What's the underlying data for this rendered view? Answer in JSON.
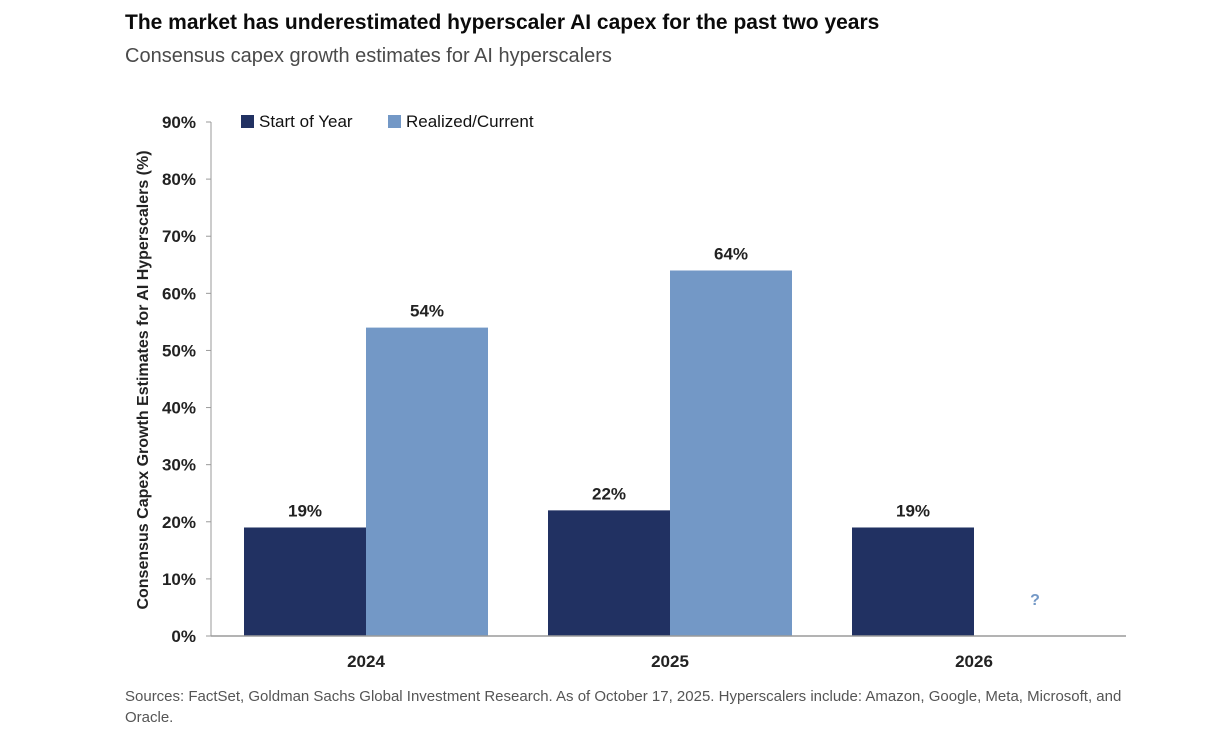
{
  "header": {
    "title": "The market has underestimated hyperscaler AI capex for the past two years",
    "subtitle": "Consensus capex growth estimates for AI hyperscalers"
  },
  "footer": {
    "source": "Sources: FactSet, Goldman Sachs Global Investment Research. As of October 17, 2025. Hyperscalers include: Amazon, Google, Meta, Microsoft, and Oracle."
  },
  "colors": {
    "start_of_year": "#213162",
    "realized_current": "#7398c6",
    "axis": "#9a9a9a",
    "question_mark": "#7398c6"
  },
  "chart_data": {
    "type": "bar",
    "categories": [
      "2024",
      "2025",
      "2026"
    ],
    "series": [
      {
        "name": "Start of Year",
        "values": [
          19,
          22,
          19
        ],
        "labels": [
          "19%",
          "22%",
          "19%"
        ]
      },
      {
        "name": "Realized/Current",
        "values": [
          54,
          64,
          null
        ],
        "labels": [
          "54%",
          "64%",
          ""
        ]
      }
    ],
    "pending_marker": "?",
    "ylabel": "Consensus Capex Growth Estimates for AI Hyperscalers (%)",
    "ylim": [
      0,
      90
    ],
    "yticks": [
      "0%",
      "10%",
      "20%",
      "30%",
      "40%",
      "50%",
      "60%",
      "70%",
      "80%",
      "90%"
    ],
    "ytick_values": [
      0,
      10,
      20,
      30,
      40,
      50,
      60,
      70,
      80,
      90
    ],
    "legend": "top-left",
    "grid": false
  }
}
